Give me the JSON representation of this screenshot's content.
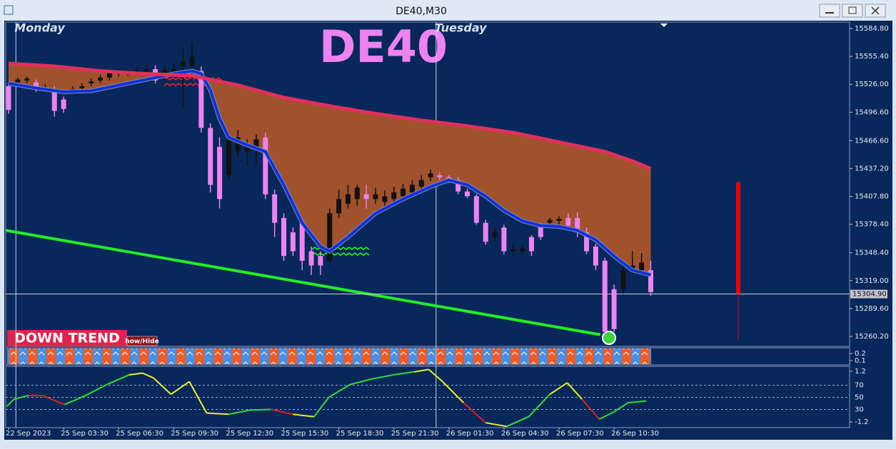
{
  "window": {
    "title": "DE40,M30"
  },
  "annotations": [
    "DOWN TREND",
    "how/Hide"
  ],
  "chart_data": [
    {
      "type": "candlestick",
      "title": "DE40",
      "open": [
        15524,
        15528,
        15530,
        15528,
        15521,
        15520,
        15510,
        15519,
        15522,
        15527,
        15530,
        15533,
        15537,
        15538,
        15539,
        15540,
        15542,
        15533,
        15540,
        15545,
        15545,
        15540,
        15480,
        15460,
        15430,
        15455,
        15455,
        15460,
        15470,
        15410,
        15385,
        15370,
        15380,
        15350,
        15345,
        15340,
        15390,
        15400,
        15405,
        15410,
        15405,
        15402,
        15405,
        15408,
        15412,
        15418,
        15428,
        15430,
        15428,
        15425,
        15413,
        15408,
        15380,
        15365,
        15375,
        15350,
        15350,
        15365,
        15378,
        15380,
        15382,
        15385,
        15385,
        15370,
        15355,
        15340,
        15310,
        15310,
        15330,
        15330,
        15330
      ],
      "high": [
        15528,
        15533,
        15534,
        15531,
        15526,
        15524,
        15513,
        15524,
        15527,
        15532,
        15536,
        15541,
        15542,
        15543,
        15544,
        15546,
        15546,
        15545,
        15548,
        15565,
        15570,
        15545,
        15485,
        15470,
        15475,
        15478,
        15468,
        15473,
        15475,
        15415,
        15390,
        15375,
        15385,
        15355,
        15350,
        15395,
        15415,
        15420,
        15420,
        15420,
        15417,
        15414,
        15418,
        15421,
        15425,
        15430,
        15436,
        15433,
        15430,
        15428,
        15416,
        15410,
        15383,
        15375,
        15378,
        15358,
        15356,
        15367,
        15380,
        15385,
        15387,
        15390,
        15391,
        15375,
        15358,
        15343,
        15315,
        15340,
        15350,
        15348,
        15340
      ],
      "low": [
        15495,
        15525,
        15527,
        15518,
        15519,
        15492,
        15496,
        15517,
        15520,
        15524,
        15527,
        15530,
        15534,
        15535,
        15536,
        15536,
        15527,
        15530,
        15537,
        15500,
        15530,
        15475,
        15412,
        15395,
        15425,
        15450,
        15440,
        15440,
        15405,
        15365,
        15340,
        15345,
        15330,
        15325,
        15325,
        15335,
        15385,
        15395,
        15398,
        15395,
        15400,
        15398,
        15400,
        15403,
        15408,
        15413,
        15424,
        15425,
        15422,
        15410,
        15406,
        15378,
        15357,
        15360,
        15347,
        15345,
        15347,
        15345,
        15362,
        15377,
        15378,
        15374,
        15365,
        15347,
        15330,
        15262,
        15265,
        15305,
        15325,
        15325,
        15303
      ],
      "close": [
        15499,
        15531,
        15532,
        15521,
        15522,
        15498,
        15500,
        15521,
        15524,
        15529,
        15533,
        15538,
        15539,
        15540,
        15541,
        15542,
        15530,
        15541,
        15543,
        15550,
        15555,
        15480,
        15420,
        15405,
        15470,
        15470,
        15462,
        15468,
        15410,
        15380,
        15345,
        15350,
        15340,
        15335,
        15335,
        15390,
        15405,
        15410,
        15417,
        15405,
        15410,
        15408,
        15412,
        15416,
        15420,
        15425,
        15432,
        15428,
        15425,
        15413,
        15408,
        15380,
        15360,
        15370,
        15350,
        15352,
        15353,
        15350,
        15365,
        15383,
        15384,
        15377,
        15370,
        15350,
        15335,
        15265,
        15268,
        15330,
        15335,
        15338,
        15307
      ],
      "up_color": "#111111",
      "down_color": "#ee82ee",
      "ylim": [
        15249.7,
        15590.8
      ],
      "yticks": [
        {
          "value": 15584.8,
          "label": "15584.80"
        },
        {
          "value": 15555.4,
          "label": "15555.40"
        },
        {
          "value": 15526,
          "label": "15526.00"
        },
        {
          "value": 15496.6,
          "label": "15496.60"
        },
        {
          "value": 15466.6,
          "label": "15466.60"
        },
        {
          "value": 15437.2,
          "label": "15437.20"
        },
        {
          "value": 15407.8,
          "label": "15407.80"
        },
        {
          "value": 15378.4,
          "label": "15378.40"
        },
        {
          "value": 15348.4,
          "label": "15348.40"
        },
        {
          "value": 15319,
          "label": "15319.00"
        },
        {
          "value": 15289.6,
          "label": "15289.60"
        },
        {
          "value": 15260.2,
          "label": "15260.20"
        }
      ],
      "xticks": [
        {
          "value": 0,
          "label": "22 Sep 2023"
        },
        {
          "value": 6,
          "label": "25 Sep 03:30"
        },
        {
          "value": 12,
          "label": "25 Sep 06:30"
        },
        {
          "value": 18,
          "label": "25 Sep 09:30"
        },
        {
          "value": 24,
          "label": "25 Sep 12:30"
        },
        {
          "value": 30,
          "label": "25 Sep 15:30"
        },
        {
          "value": 36,
          "label": "25 Sep 18:30"
        },
        {
          "value": 42,
          "label": "25 Sep 21:30"
        },
        {
          "value": 48,
          "label": "26 Sep 01:30"
        },
        {
          "value": 54,
          "label": "26 Sep 04:30"
        },
        {
          "value": 60,
          "label": "26 Sep 07:30"
        },
        {
          "value": 66,
          "label": "26 Sep 10:30"
        }
      ],
      "day_separators": [
        {
          "value": 0.8,
          "label": "Monday"
        },
        {
          "value": 46.6,
          "label": "Tuesday"
        }
      ],
      "current_price": {
        "value": 15304.9,
        "label": "15304.90"
      },
      "ma_upper": {
        "color": "#e0305a",
        "x": [
          0,
          5,
          10,
          15,
          20,
          25,
          30,
          35,
          40,
          45,
          50,
          55,
          60,
          65,
          68,
          70
        ],
        "values": [
          15548,
          15545,
          15540,
          15537,
          15535,
          15525,
          15512,
          15503,
          15495,
          15488,
          15482,
          15475,
          15465,
          15455,
          15445,
          15437
        ]
      },
      "ma_lower": {
        "color": "#1030e0",
        "x": [
          0,
          3,
          6,
          9,
          12,
          15,
          18,
          20,
          21,
          22,
          23,
          24,
          26,
          28,
          30,
          32,
          34,
          35,
          37,
          40,
          43,
          46,
          48,
          50,
          52,
          54,
          56,
          58,
          60,
          62,
          64,
          66,
          68,
          70
        ],
        "values": [
          15527,
          15522,
          15518,
          15519,
          15525,
          15531,
          15537,
          15540,
          15537,
          15520,
          15490,
          15470,
          15462,
          15455,
          15420,
          15380,
          15355,
          15350,
          15365,
          15390,
          15405,
          15418,
          15425,
          15420,
          15408,
          15393,
          15382,
          15377,
          15376,
          15372,
          15362,
          15345,
          15330,
          15325
        ]
      },
      "band_color": "#a0522d",
      "trendline": {
        "color": "#22ee22",
        "x": [
          -0.3,
          64.5
        ],
        "values": [
          15372,
          15262
        ]
      },
      "higher_tf_candle": {
        "color": "#ee0000",
        "open": 15423,
        "close": 15305,
        "low": 15257
      }
    },
    {
      "type": "strip",
      "ylim": [
        0.04,
        0.28
      ],
      "yticks": [
        0.2,
        0.1
      ]
    },
    {
      "type": "line",
      "ylim": [
        0,
        100
      ],
      "yticks": [
        70,
        50,
        30
      ],
      "y2lim": [
        -1.47,
        1.4
      ],
      "y2ticks": [
        1.2,
        -1.2
      ],
      "rising_color": "#33dd33",
      "falling_color": "#dd2020",
      "peak_color": "#eeee22",
      "x": [
        -0.2,
        0.6,
        2.2,
        3.7,
        6.1,
        8.4,
        10.7,
        13.1,
        14.6,
        15.8,
        17.7,
        19.7,
        21.6,
        24.0,
        26.3,
        28.6,
        31.0,
        33.3,
        34.9,
        37.2,
        39.5,
        41.9,
        44.2,
        45.8,
        47.3,
        49.6,
        52.0,
        54.3,
        56.7,
        59.0,
        60.9,
        62.5,
        64.4,
        66.0,
        67.5,
        69.5
      ],
      "values": [
        35,
        47,
        53,
        53,
        38,
        53,
        71,
        87,
        90,
        82,
        55,
        76,
        24,
        22,
        29,
        30,
        22,
        18,
        50,
        71,
        80,
        87,
        92,
        96,
        76,
        41,
        8,
        2,
        18,
        55,
        74,
        47,
        14,
        26,
        41,
        44
      ]
    }
  ]
}
